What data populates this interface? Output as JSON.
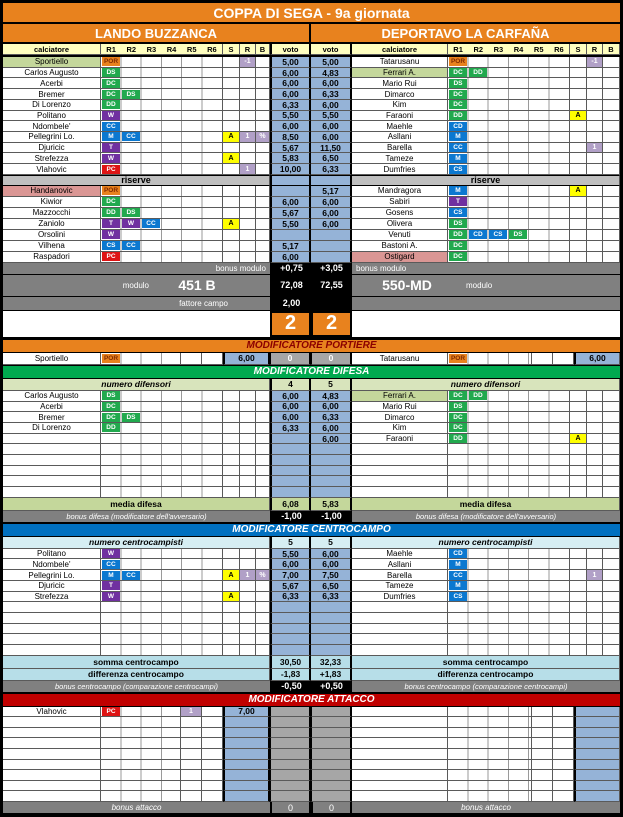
{
  "title": "COPPA DI SEGA - 9a giornata",
  "teams": {
    "home": "LANDO BUZZANCA",
    "away": "DEPORTAVO LA CARFAÑA"
  },
  "columns": {
    "player": "calciatore",
    "voto": "voto",
    "slots": [
      "R1",
      "R2",
      "R3",
      "R4",
      "R5",
      "R6"
    ],
    "extra": [
      "S",
      "R",
      "B"
    ]
  },
  "labels": {
    "riserve": "riserve"
  },
  "colors": {
    "accent_orange": "#E8821E",
    "defense_green": "#21A94E",
    "midfield_blue": "#0B78D0",
    "wing_purple": "#7030A0",
    "striker_red": "#DE1414",
    "goalkeeper_orange": "#E8821E",
    "voto_blue": "#95B3D7",
    "badge_yellow": "#FFFF00",
    "badge_lilac": "#B1A0C7",
    "band_defense": "#00A94F",
    "band_midfield": "#0070C0",
    "band_attack": "#C00000",
    "home_score_text": "#F79646"
  },
  "main": {
    "home": [
      {
        "n": "Sportiello",
        "hl": "g",
        "b": [
          "POR"
        ],
        "r": "-1",
        "v": "5,00"
      },
      {
        "n": "Carlos Augusto",
        "b": [
          "DS"
        ],
        "v": "6,00"
      },
      {
        "n": "Acerbi",
        "b": [
          "DC"
        ],
        "v": "6,00"
      },
      {
        "n": "Bremer",
        "b": [
          "DC",
          "DS"
        ],
        "v": "6,00"
      },
      {
        "n": "Di Lorenzo",
        "b": [
          "DD"
        ],
        "v": "6,33"
      },
      {
        "n": "Politano",
        "b": [
          "W"
        ],
        "v": "5,50"
      },
      {
        "n": "Ndombele'",
        "b": [
          "CC"
        ],
        "v": "6,00"
      },
      {
        "n": "Pellegrini Lo.",
        "b": [
          "M",
          "CC"
        ],
        "s": "A",
        "r": "1",
        "bb": "%",
        "v": "8,50"
      },
      {
        "n": "Djuricic",
        "b": [
          "T"
        ],
        "v": "5,67"
      },
      {
        "n": "Strefezza",
        "b": [
          "W"
        ],
        "s": "A",
        "v": "5,83"
      },
      {
        "n": "Vlahovic",
        "b": [
          "PC"
        ],
        "r": "1",
        "v": "10,00"
      }
    ],
    "away": [
      {
        "n": "Tatarusanu",
        "b": [
          "POR"
        ],
        "r": "-1",
        "v": "5,00"
      },
      {
        "n": "Ferrari A.",
        "hl": "g",
        "b": [
          "DC",
          "DD"
        ],
        "v": "4,83"
      },
      {
        "n": "Mario Rui",
        "b": [
          "DS"
        ],
        "v": "6,00"
      },
      {
        "n": "Dimarco",
        "b": [
          "DC"
        ],
        "v": "6,33"
      },
      {
        "n": "Kim",
        "b": [
          "DC"
        ],
        "v": "6,00"
      },
      {
        "n": "Faraoni",
        "b": [
          "DD"
        ],
        "s": "A",
        "v": "5,50"
      },
      {
        "n": "Maehle",
        "b": [
          "CD"
        ],
        "v": "6,00"
      },
      {
        "n": "Asllani",
        "b": [
          "M"
        ],
        "v": "6,00"
      },
      {
        "n": "Barella",
        "b": [
          "CC"
        ],
        "r": "1",
        "v": "11,50"
      },
      {
        "n": "Tameze",
        "b": [
          "M"
        ],
        "v": "6,50"
      },
      {
        "n": "Dumfries",
        "b": [
          "CS"
        ],
        "v": "6,33"
      }
    ]
  },
  "riserve": {
    "home": [
      {
        "n": "Handanovic",
        "hl": "p",
        "b": [
          "POR"
        ],
        "v": ""
      },
      {
        "n": "Kiwior",
        "b": [
          "DC"
        ],
        "v": "6,00"
      },
      {
        "n": "Mazzocchi",
        "b": [
          "DD",
          "DS"
        ],
        "v": "5,67"
      },
      {
        "n": "Zaniolo",
        "b": [
          "T",
          "W",
          "CC"
        ],
        "s": "A",
        "v": "5,50"
      },
      {
        "n": "Orsolini",
        "b": [
          "W"
        ],
        "v": ""
      },
      {
        "n": "Vilhena",
        "b": [
          "CS",
          "CC"
        ],
        "v": "5,17"
      },
      {
        "n": "Raspadori",
        "b": [
          "PC"
        ],
        "v": "6,00"
      }
    ],
    "away": [
      {
        "n": "Mandragora",
        "b": [
          "M"
        ],
        "s": "A",
        "v": "5,17"
      },
      {
        "n": "Sabiri",
        "b": [
          "T"
        ],
        "v": "6,00"
      },
      {
        "n": "Gosens",
        "b": [
          "CS"
        ],
        "v": "6,00"
      },
      {
        "n": "Olivera",
        "b": [
          "DS"
        ],
        "v": "6,00"
      },
      {
        "n": "Venuti",
        "b": [
          "DD",
          "CD",
          "CS",
          "DS"
        ],
        "v": ""
      },
      {
        "n": "Bastoni A.",
        "b": [
          "DC"
        ],
        "v": ""
      },
      {
        "n": "Ostigard",
        "hl": "p",
        "b": [
          "DC"
        ],
        "v": ""
      }
    ]
  },
  "modulo": {
    "bonus_label": "bonus modulo",
    "bonus_home": "+0,75",
    "bonus_away": "+3,05",
    "label": "modulo",
    "home_name": "451 B",
    "away_name": "550-MD",
    "home_score": "72,08",
    "away_score": "72,55"
  },
  "fattore": {
    "label": "fattore campo",
    "value": "2,00",
    "multiplier_home": "2",
    "multiplier_away": "2"
  },
  "sections": {
    "portiere": {
      "header": "MODIFICATORE PORTIERE",
      "home_row": {
        "n": "Sportiello",
        "b": [
          "POR"
        ],
        "v": "6,00"
      },
      "away_row": {
        "n": "Tatarusanu",
        "b": [
          "POR"
        ],
        "v": "6,00"
      },
      "home_mod": "0",
      "away_mod": "0"
    },
    "difesa": {
      "header": "MODIFICATORE DIFESA",
      "numero_label": "numero difensori",
      "home_num": "4",
      "away_num": "5",
      "home_rows": [
        {
          "n": "Carlos Augusto",
          "b": [
            "DS"
          ],
          "v": "6,00"
        },
        {
          "n": "Acerbi",
          "b": [
            "DC"
          ],
          "v": "6,00"
        },
        {
          "n": "Bremer",
          "b": [
            "DC",
            "DS"
          ],
          "v": "6,00"
        },
        {
          "n": "Di Lorenzo",
          "b": [
            "DD"
          ],
          "v": "6,33"
        }
      ],
      "away_rows": [
        {
          "n": "Ferrari A.",
          "hl": "g",
          "b": [
            "DC",
            "DD"
          ],
          "v": "4,83"
        },
        {
          "n": "Mario Rui",
          "b": [
            "DS"
          ],
          "v": "6,00"
        },
        {
          "n": "Dimarco",
          "b": [
            "DC"
          ],
          "v": "6,33"
        },
        {
          "n": "Kim",
          "b": [
            "DC"
          ],
          "v": "6,00"
        },
        {
          "n": "Faraoni",
          "b": [
            "DD"
          ],
          "s": "A",
          "v": "6,00"
        }
      ],
      "media_label": "media difesa",
      "media_home": "6,08",
      "media_away": "5,83",
      "bonus_label": "bonus difesa (modificatore dell'avversario)",
      "bonus_home": "-1,00",
      "bonus_away": "-1,00"
    },
    "centrocampo": {
      "header": "MODIFICATORE CENTROCAMPO",
      "numero_label": "numero centrocampisti",
      "home_num": "5",
      "away_num": "5",
      "home_rows": [
        {
          "n": "Politano",
          "b": [
            "W"
          ],
          "v": "5,50"
        },
        {
          "n": "Ndombele'",
          "b": [
            "CC"
          ],
          "v": "6,00"
        },
        {
          "n": "Pellegrini Lo.",
          "b": [
            "M",
            "CC"
          ],
          "s": "A",
          "r": "1",
          "bb": "%",
          "v": "7,00"
        },
        {
          "n": "Djuricic",
          "b": [
            "T"
          ],
          "v": "5,67"
        },
        {
          "n": "Strefezza",
          "b": [
            "W"
          ],
          "s": "A",
          "v": "6,33"
        }
      ],
      "away_rows": [
        {
          "n": "Maehle",
          "b": [
            "CD"
          ],
          "v": "6,00"
        },
        {
          "n": "Asllani",
          "b": [
            "M"
          ],
          "v": "6,00"
        },
        {
          "n": "Barella",
          "b": [
            "CC"
          ],
          "r": "1",
          "v": "7,50"
        },
        {
          "n": "Tameze",
          "b": [
            "M"
          ],
          "v": "6,50"
        },
        {
          "n": "Dumfries",
          "b": [
            "CS"
          ],
          "v": "6,33"
        }
      ],
      "somma_label": "somma centrocampo",
      "somma_home": "30,50",
      "somma_away": "32,33",
      "diff_label": "differenza centrocampo",
      "diff_home": "-1,83",
      "diff_away": "+1,83",
      "bonus_label": "bonus centrocampo (comparazione centrocampi)",
      "bonus_home": "-0,50",
      "bonus_away": "+0,50"
    },
    "attacco": {
      "header": "MODIFICATORE ATTACCO",
      "home_rows": [
        {
          "n": "Vlahovic",
          "b": [
            "PC"
          ],
          "c1": "1",
          "v": "7,00"
        }
      ],
      "away_rows": [],
      "empty_rows": 9,
      "bonus_label": "bonus attacco",
      "bonus_home": "0",
      "bonus_away": "0"
    }
  }
}
